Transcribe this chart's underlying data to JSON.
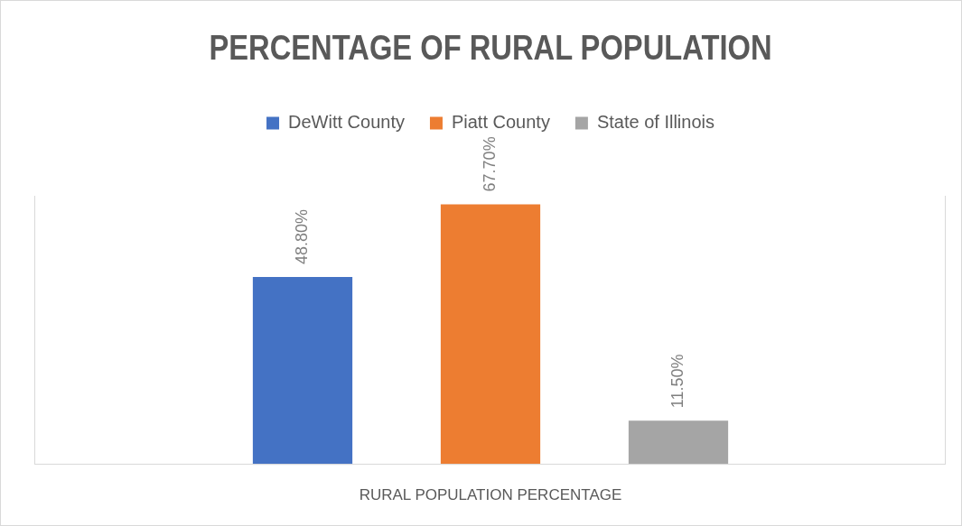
{
  "chart_data": {
    "type": "bar",
    "title": "PERCENTAGE OF RURAL POPULATION",
    "xlabel": "RURAL POPULATION PERCENTAGE",
    "categories": [
      null,
      null,
      null
    ],
    "stacked": true,
    "series": [
      {
        "name": "DeWitt County",
        "color": "#4472c4",
        "values": [
          48.8,
          null,
          null
        ],
        "value_labels": [
          "48.80%",
          null,
          null
        ]
      },
      {
        "name": "Piatt County",
        "color": "#ed7d31",
        "values": [
          null,
          67.7,
          null
        ],
        "value_labels": [
          null,
          "67.70%",
          null
        ]
      },
      {
        "name": "State of Illinois",
        "color": "#a5a5a5",
        "values": [
          null,
          null,
          11.5
        ],
        "value_labels": [
          null,
          null,
          "11.50%"
        ]
      }
    ],
    "legend": "top"
  }
}
